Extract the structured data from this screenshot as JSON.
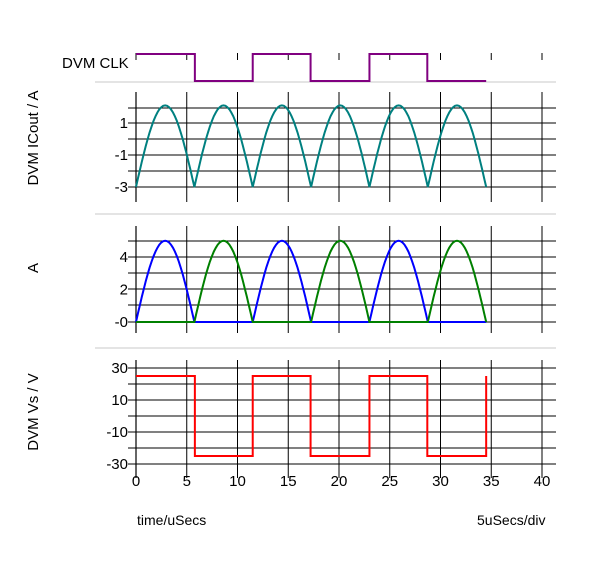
{
  "footer": {
    "x_label": "time/uSecs",
    "scale": "5uSecs/div"
  },
  "chart_data": [
    {
      "type": "line",
      "name": "clk",
      "title": "DVM CLK",
      "ylabel": "",
      "x_range": [
        0,
        34.5
      ],
      "color": "#800080",
      "series": [
        {
          "name": "DVM CLK",
          "color": "#800080",
          "steps": [
            [
              0,
              1
            ],
            [
              5.8,
              0
            ],
            [
              11.5,
              1
            ],
            [
              17.2,
              0
            ],
            [
              23,
              1
            ],
            [
              28.7,
              0
            ],
            [
              34.5,
              0
            ]
          ]
        }
      ]
    },
    {
      "type": "line",
      "name": "icout",
      "ylabel": "DVM ICout / A",
      "ylim": [
        -3,
        2
      ],
      "yticks": [
        1,
        -1,
        -3
      ],
      "grid": true,
      "period": 5.75,
      "x_range": [
        0,
        34.5
      ],
      "series": [
        {
          "name": "DVM ICout",
          "color": "#008080",
          "min": -3,
          "max": 2.1,
          "shape": "rectified-sine-offset"
        }
      ]
    },
    {
      "type": "line",
      "name": "amps",
      "ylabel": "A",
      "ylim": [
        0,
        5
      ],
      "yticks": [
        4,
        2,
        0
      ],
      "grid": true,
      "period": 5.75,
      "x_range": [
        0,
        34.5
      ],
      "series": [
        {
          "name": "blue",
          "color": "#0000ff",
          "peak": 5,
          "active": "even"
        },
        {
          "name": "green",
          "color": "#008000",
          "peak": 5,
          "active": "odd"
        }
      ]
    },
    {
      "type": "line",
      "name": "vs",
      "ylabel": "DVM Vs / V",
      "ylim": [
        -30,
        30
      ],
      "yticks": [
        30,
        10,
        -10,
        -30
      ],
      "grid": true,
      "x_range": [
        0,
        34.5
      ],
      "series": [
        {
          "name": "DVM Vs",
          "color": "#ff0000",
          "steps": [
            [
              0,
              25
            ],
            [
              5.8,
              -25
            ],
            [
              11.5,
              25
            ],
            [
              17.2,
              -25
            ],
            [
              23,
              25
            ],
            [
              28.7,
              -25
            ],
            [
              34.5,
              25
            ]
          ]
        }
      ]
    }
  ],
  "x_axis": {
    "min": 0,
    "max": 40,
    "ticks": [
      0,
      5,
      10,
      15,
      20,
      25,
      30,
      35,
      40
    ]
  }
}
